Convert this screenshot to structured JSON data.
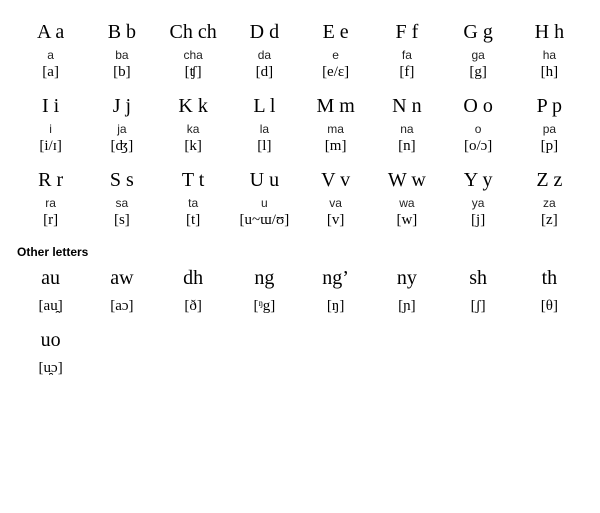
{
  "main_rows": [
    [
      {
        "letter": "A a",
        "name": "a",
        "ipa": "[a]"
      },
      {
        "letter": "B b",
        "name": "ba",
        "ipa": "[b]"
      },
      {
        "letter": "Ch ch",
        "name": "cha",
        "ipa": "[ʧ]"
      },
      {
        "letter": "D d",
        "name": "da",
        "ipa": "[d]"
      },
      {
        "letter": "E e",
        "name": "e",
        "ipa": "[e/ɛ]"
      },
      {
        "letter": "F f",
        "name": "fa",
        "ipa": "[f]"
      },
      {
        "letter": "G g",
        "name": "ga",
        "ipa": "[g]"
      },
      {
        "letter": "H h",
        "name": "ha",
        "ipa": "[h]"
      }
    ],
    [
      {
        "letter": "I i",
        "name": "i",
        "ipa": "[i/ɪ]"
      },
      {
        "letter": "J j",
        "name": "ja",
        "ipa": "[ʤ]"
      },
      {
        "letter": "K k",
        "name": "ka",
        "ipa": "[k]"
      },
      {
        "letter": "L l",
        "name": "la",
        "ipa": "[l]"
      },
      {
        "letter": "M m",
        "name": "ma",
        "ipa": "[m]"
      },
      {
        "letter": "N n",
        "name": "na",
        "ipa": "[n]"
      },
      {
        "letter": "O o",
        "name": "o",
        "ipa": "[o/ɔ]"
      },
      {
        "letter": "P p",
        "name": "pa",
        "ipa": "[p]"
      }
    ],
    [
      {
        "letter": "R r",
        "name": "ra",
        "ipa": "[r]"
      },
      {
        "letter": "S s",
        "name": "sa",
        "ipa": "[s]"
      },
      {
        "letter": "T t",
        "name": "ta",
        "ipa": "[t]"
      },
      {
        "letter": "U u",
        "name": "u",
        "ipa": "[u~ɯ/ʊ]"
      },
      {
        "letter": "V v",
        "name": "va",
        "ipa": "[v]"
      },
      {
        "letter": "W w",
        "name": "wa",
        "ipa": "[w]"
      },
      {
        "letter": "Y y",
        "name": "ya",
        "ipa": "[j]"
      },
      {
        "letter": "Z z",
        "name": "za",
        "ipa": "[z]"
      }
    ]
  ],
  "section_label": "Other letters",
  "other_rows": [
    [
      {
        "letter": "au",
        "ipa": "[au̯]"
      },
      {
        "letter": "aw",
        "ipa": "[aɔ]"
      },
      {
        "letter": "dh",
        "ipa": "[ð]"
      },
      {
        "letter": "ng",
        "ipa": "[ᵑg]"
      },
      {
        "letter": "ng’",
        "ipa": "[ŋ]"
      },
      {
        "letter": "ny",
        "ipa": "[ɲ]"
      },
      {
        "letter": "sh",
        "ipa": "[ʃ]"
      },
      {
        "letter": "th",
        "ipa": "[θ]"
      }
    ],
    [
      {
        "letter": "uo",
        "ipa": "[u̯ɔ]"
      }
    ]
  ],
  "style": {
    "background_color": "#ffffff",
    "text_color": "#000000",
    "letter_fontsize": 20,
    "name_fontsize": 12,
    "ipa_fontsize": 15,
    "section_fontsize": 12,
    "columns": 8
  }
}
